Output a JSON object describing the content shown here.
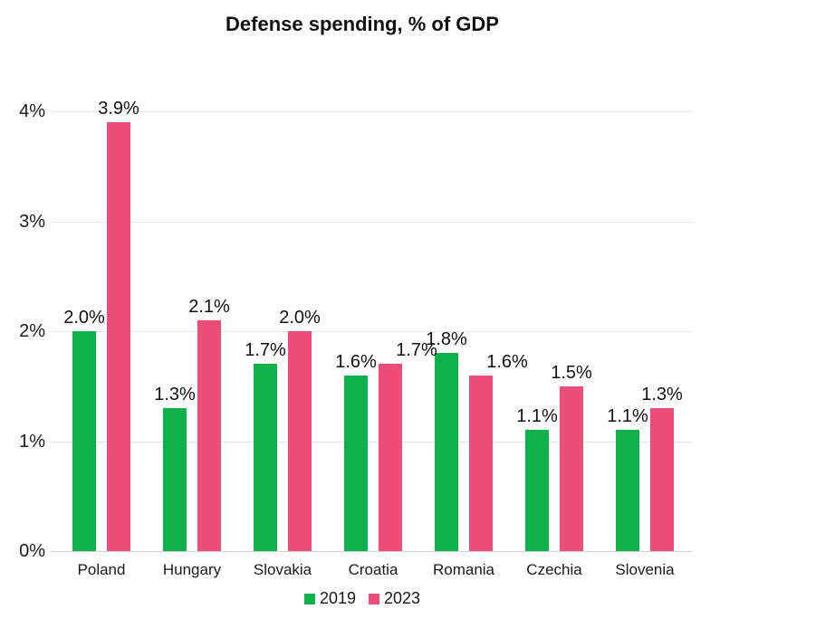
{
  "title": "Defense spending, % of GDP",
  "legend": {
    "items": [
      {
        "label": "2019",
        "color": "#0eb14a"
      },
      {
        "label": "2023",
        "color": "#ed4e78"
      }
    ]
  },
  "colors": {
    "series_2019": "#0eb14a",
    "series_2023": "#ed4e78",
    "gridline": "#e4e4e4",
    "axis_line": "#cfcfcf",
    "text": "#1a1a1a"
  },
  "chart_data": {
    "type": "bar",
    "title": "Defense spending, % of GDP",
    "categories": [
      "Poland",
      "Hungary",
      "Slovakia",
      "Croatia",
      "Romania",
      "Czechia",
      "Slovenia"
    ],
    "series": [
      {
        "name": "2019",
        "color": "#0eb14a",
        "values": [
          2.0,
          1.3,
          1.7,
          1.6,
          1.8,
          1.1,
          1.1
        ],
        "labels": [
          "2.0%",
          "1.3%",
          "1.7%",
          "1.6%",
          "1.8%",
          "1.1%",
          "1.1%"
        ]
      },
      {
        "name": "2023",
        "color": "#ed4e78",
        "values": [
          3.9,
          2.1,
          2.0,
          1.7,
          1.6,
          1.5,
          1.3
        ],
        "labels": [
          "3.9%",
          "2.1%",
          "2.0%",
          "1.7%",
          "1.6%",
          "1.5%",
          "1.3%"
        ]
      }
    ],
    "xlabel": "",
    "ylabel": "",
    "ylim": [
      0,
      4
    ],
    "yticks": [
      {
        "value": 0,
        "label": "0%"
      },
      {
        "value": 1,
        "label": "1%"
      },
      {
        "value": 2,
        "label": "2%"
      },
      {
        "value": 3,
        "label": "3%"
      },
      {
        "value": 4,
        "label": "4%"
      }
    ],
    "grid": true,
    "legend_position": "bottom-center",
    "value_labels": true,
    "label_shift_right": [
      {
        "series": 1,
        "category_index": 3
      },
      {
        "series": 1,
        "category_index": 4
      }
    ]
  }
}
